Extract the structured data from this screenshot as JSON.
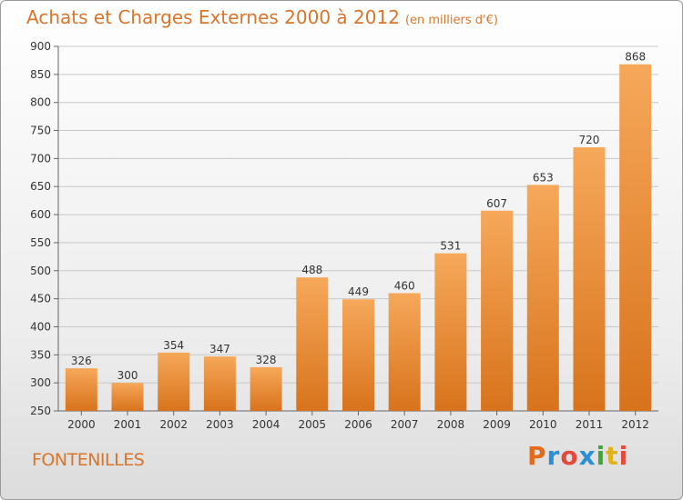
{
  "header": {
    "title": "Achats et Charges Externes 2000 à 2012",
    "subtitle": "(en milliers d'€)"
  },
  "footer": {
    "place": "FONTENILLES",
    "brand": "Proxiti",
    "brand_colors": [
      "#e26a1b",
      "#2a8fd6",
      "#e24a3b",
      "#2a8fd6",
      "#3aaa35",
      "#e2b21b",
      "#e24a3b"
    ]
  },
  "colors": {
    "bar_light": "#f6a85a",
    "bar_dark": "#d8731c",
    "title": "#d8752a",
    "grid": "#c8c8c8"
  },
  "chart_data": {
    "type": "bar",
    "categories": [
      "2000",
      "2001",
      "2002",
      "2003",
      "2004",
      "2005",
      "2006",
      "2007",
      "2008",
      "2009",
      "2010",
      "2011",
      "2012"
    ],
    "values": [
      326,
      300,
      354,
      347,
      328,
      488,
      449,
      460,
      531,
      607,
      653,
      720,
      868
    ],
    "title": "Achats et Charges Externes 2000 à 2012",
    "subtitle": "(en milliers d'€)",
    "xlabel": "",
    "ylabel": "",
    "ylim": [
      250,
      900
    ],
    "yticks": [
      250,
      300,
      350,
      400,
      450,
      500,
      550,
      600,
      650,
      700,
      750,
      800,
      850,
      900
    ],
    "grid": true,
    "legend": "none"
  }
}
